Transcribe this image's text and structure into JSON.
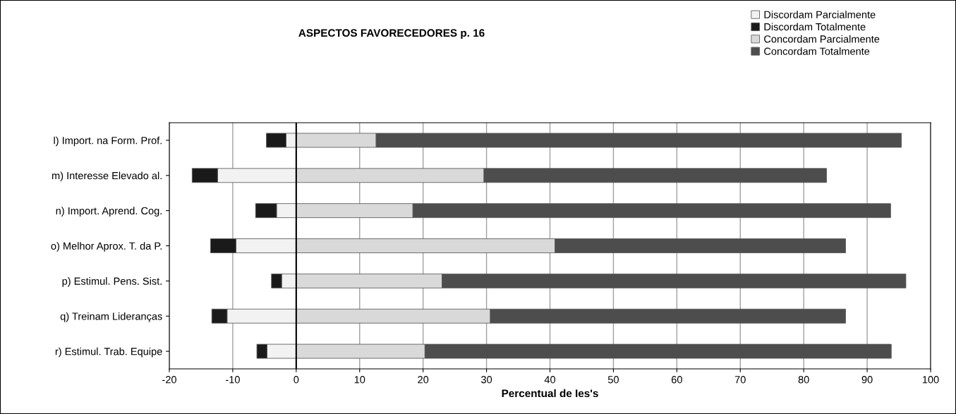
{
  "chart_data": {
    "type": "bar",
    "orientation": "horizontal",
    "stacked": true,
    "title": "ASPECTOS FAVORECEDORES p. 16",
    "xlabel": "Percentual de Ies's",
    "categories": [
      "l) Import. na Form. Prof.",
      "m) Interesse Elevado al.",
      "n) Import. Aprend. Cog.",
      "o) Melhor Aprox. T. da P.",
      "p) Estimul. Pens. Sist.",
      "q) Treinam Lideranças",
      "r) Estimul. Trab. Equipe"
    ],
    "series": [
      {
        "name": "Discordam Parcialmente",
        "color": "#f2f2f2",
        "values": [
          -1.6,
          -12.4,
          -3.1,
          -9.5,
          -2.3,
          -10.9,
          -4.6
        ]
      },
      {
        "name": "Discordam Totalmente",
        "color": "#1a1a1a",
        "values": [
          -3.1,
          -4.0,
          -3.3,
          -4.0,
          -1.6,
          -2.4,
          -1.6
        ]
      },
      {
        "name": "Concordam Parcialmente",
        "color": "#d9d9d9",
        "values": [
          12.6,
          29.6,
          18.4,
          40.8,
          23.0,
          30.6,
          20.3
        ]
      },
      {
        "name": "Concordam Totalmente",
        "color": "#4d4d4d",
        "values": [
          82.8,
          54.0,
          75.3,
          45.8,
          73.1,
          56.0,
          73.5
        ]
      }
    ],
    "xlim": [
      -20,
      100
    ],
    "xticks": [
      -20,
      -10,
      0,
      10,
      20,
      30,
      40,
      50,
      60,
      70,
      80,
      90,
      100
    ],
    "grid": "x",
    "legend": "top right"
  }
}
